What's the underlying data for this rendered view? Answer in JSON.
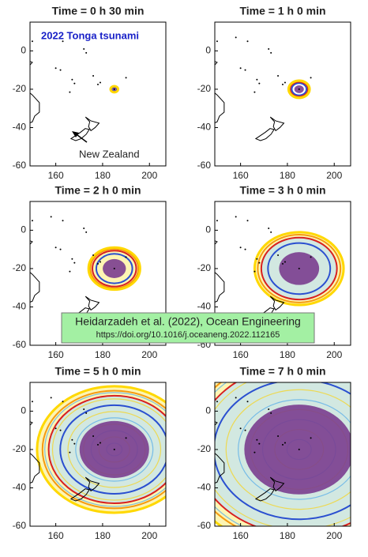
{
  "chart_data": [
    {
      "type": "map",
      "title": "Time = 0 h 30 min",
      "xlim": [
        149,
        207
      ],
      "ylim": [
        -60,
        15
      ],
      "xticks": [
        160,
        180,
        200
      ],
      "yticks": [
        -60,
        -40,
        -20,
        0
      ],
      "annotations": [
        "2022 Tonga tsunami",
        "New Zealand"
      ]
    },
    {
      "type": "map",
      "title": "Time = 1 h 0 min",
      "xlim": [
        149,
        207
      ],
      "ylim": [
        -60,
        15
      ],
      "xticks": [
        160,
        180,
        200
      ],
      "yticks": [
        -60,
        -40,
        -20,
        0
      ]
    },
    {
      "type": "map",
      "title": "Time = 2 h 0 min",
      "xlim": [
        149,
        207
      ],
      "ylim": [
        -60,
        15
      ],
      "xticks": [
        160,
        180,
        200
      ],
      "yticks": [
        -60,
        -40,
        -20,
        0
      ]
    },
    {
      "type": "map",
      "title": "Time = 3 h 0 min",
      "xlim": [
        149,
        207
      ],
      "ylim": [
        -60,
        15
      ],
      "xticks": [
        160,
        180,
        200
      ],
      "yticks": [
        -60,
        -40,
        -20,
        0
      ]
    },
    {
      "type": "map",
      "title": "Time = 5 h 0 min",
      "xlim": [
        149,
        207
      ],
      "ylim": [
        -60,
        15
      ],
      "xticks": [
        160,
        180,
        200
      ],
      "yticks": [
        -60,
        -40,
        -20,
        0
      ]
    },
    {
      "type": "map",
      "title": "Time = 7 h 0 min",
      "xlim": [
        149,
        207
      ],
      "ylim": [
        -60,
        15
      ],
      "xticks": [
        160,
        180,
        200
      ],
      "yticks": [
        -60,
        -40,
        -20,
        0
      ]
    }
  ],
  "figure_note": [
    "Heidarzadeh et al. (2022), Ocean Engineering",
    "https://doi.org/10.1016/j.oceaneng.2022.112165"
  ]
}
